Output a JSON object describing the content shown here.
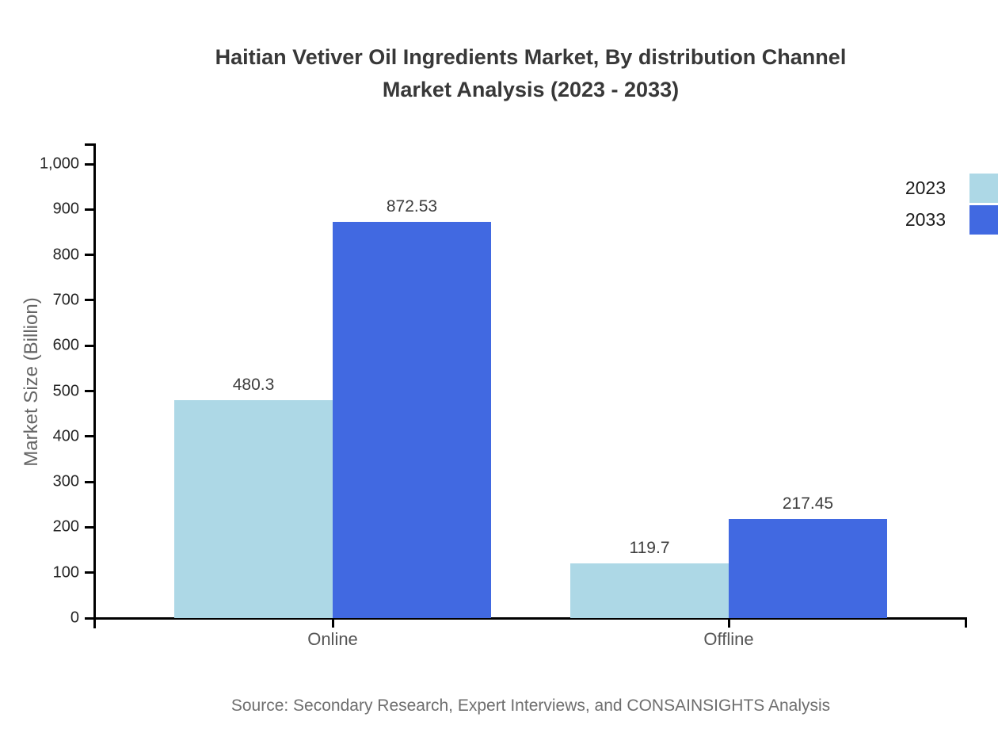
{
  "title": {
    "line1": "Haitian Vetiver Oil Ingredients Market, By distribution Channel",
    "line2": "Market Analysis (2023 - 2033)"
  },
  "legend": [
    {
      "label": "2023",
      "color": "#ADD8E6"
    },
    {
      "label": "2033",
      "color": "#4169E1"
    }
  ],
  "source": "Source: Secondary Research, Expert Interviews, and CONSAINSIGHTS Analysis",
  "colors": {
    "series_2023": "#ADD8E6",
    "series_2033": "#4169E1",
    "axis": "#000000"
  },
  "chart_data": {
    "type": "bar",
    "title": "Haitian Vetiver Oil Ingredients Market, By distribution Channel Market Analysis (2023 - 2033)",
    "categories": [
      "Online",
      "Offline"
    ],
    "series": [
      {
        "name": "2023",
        "color": "#ADD8E6",
        "values": [
          480.3,
          119.7
        ],
        "labels": [
          "480.3",
          "119.7"
        ]
      },
      {
        "name": "2033",
        "color": "#4169E1",
        "values": [
          872.53,
          217.45
        ],
        "labels": [
          "872.53",
          "217.45"
        ]
      }
    ],
    "xlabel": "",
    "ylabel": "Market Size (Billion)",
    "ylim": [
      0,
      1000
    ],
    "y_ticks": [
      {
        "value": 0,
        "label": "0"
      },
      {
        "value": 100,
        "label": "100"
      },
      {
        "value": 200,
        "label": "200"
      },
      {
        "value": 300,
        "label": "300"
      },
      {
        "value": 400,
        "label": "400"
      },
      {
        "value": 500,
        "label": "500"
      },
      {
        "value": 600,
        "label": "600"
      },
      {
        "value": 700,
        "label": "700"
      },
      {
        "value": 800,
        "label": "800"
      },
      {
        "value": 900,
        "label": "900"
      },
      {
        "value": 1000,
        "label": "1,000"
      }
    ],
    "grid": false,
    "legend_position": "top-right",
    "value_labels_shown": true
  }
}
